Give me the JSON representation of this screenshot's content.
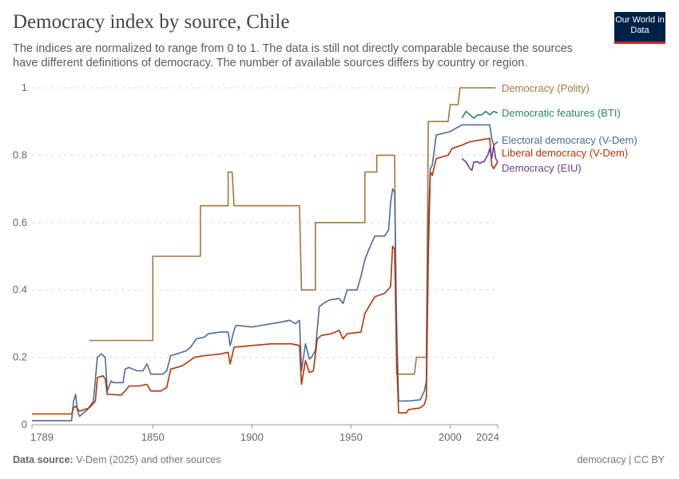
{
  "header": {
    "title": "Democracy index by source, Chile",
    "subtitle": "The indices are normalized to range from 0 to 1. The data is still not directly comparable because the sources have different definitions of democracy. The number of available sources differs by country or region.",
    "logo": "Our World in Data"
  },
  "footer": {
    "source_label": "Data source:",
    "source": "V-Dem (2025) and other sources",
    "license": "democracy | CC BY"
  },
  "chart_data": {
    "type": "line",
    "title": "Democracy index by source, Chile",
    "xlabel": "",
    "ylabel": "",
    "xlim": [
      1789,
      2024
    ],
    "ylim": [
      0,
      1
    ],
    "x_ticks": [
      "1789",
      "1850",
      "1900",
      "1950",
      "2000",
      "2024"
    ],
    "y_ticks": [
      "0",
      "0.2",
      "0.4",
      "0.6",
      "0.8",
      "1"
    ],
    "grid": "horizontal dashed",
    "legend": "right, inline labels",
    "series": [
      {
        "name": "Democracy (Polity)",
        "color": "#a2773f",
        "step": true,
        "points": [
          [
            1818,
            0.25
          ],
          [
            1850,
            0.25
          ],
          [
            1850,
            0.5
          ],
          [
            1874,
            0.5
          ],
          [
            1874,
            0.65
          ],
          [
            1888,
            0.65
          ],
          [
            1888,
            0.75
          ],
          [
            1890,
            0.75
          ],
          [
            1891,
            0.65
          ],
          [
            1924,
            0.65
          ],
          [
            1925,
            0.4
          ],
          [
            1932,
            0.4
          ],
          [
            1932,
            0.6
          ],
          [
            1957,
            0.6
          ],
          [
            1957,
            0.75
          ],
          [
            1963,
            0.75
          ],
          [
            1963,
            0.8
          ],
          [
            1972,
            0.8
          ],
          [
            1973,
            0.15
          ],
          [
            1982,
            0.15
          ],
          [
            1983,
            0.2
          ],
          [
            1988,
            0.2
          ],
          [
            1989,
            0.9
          ],
          [
            1999,
            0.9
          ],
          [
            2000,
            0.95
          ],
          [
            2004,
            0.95
          ],
          [
            2005,
            1
          ],
          [
            2023,
            1
          ]
        ]
      },
      {
        "name": "Democratic features (BTI)",
        "color": "#2c8465",
        "points": [
          [
            2006,
            0.91
          ],
          [
            2008,
            0.93
          ],
          [
            2010,
            0.92
          ],
          [
            2012,
            0.91
          ],
          [
            2014,
            0.92
          ],
          [
            2016,
            0.92
          ],
          [
            2018,
            0.93
          ],
          [
            2020,
            0.92
          ],
          [
            2022,
            0.93
          ],
          [
            2024,
            0.925
          ]
        ]
      },
      {
        "name": "Electoral democracy (V-Dem)",
        "color": "#4c6a9c",
        "points": [
          [
            1789,
            0.012
          ],
          [
            1809,
            0.012
          ],
          [
            1810,
            0.07
          ],
          [
            1811,
            0.09
          ],
          [
            1812,
            0.04
          ],
          [
            1813,
            0.025
          ],
          [
            1817,
            0.045
          ],
          [
            1820,
            0.07
          ],
          [
            1822,
            0.2
          ],
          [
            1824,
            0.21
          ],
          [
            1826,
            0.2
          ],
          [
            1827,
            0.1
          ],
          [
            1829,
            0.13
          ],
          [
            1830,
            0.125
          ],
          [
            1835,
            0.125
          ],
          [
            1836,
            0.165
          ],
          [
            1838,
            0.17
          ],
          [
            1842,
            0.16
          ],
          [
            1845,
            0.16
          ],
          [
            1847,
            0.18
          ],
          [
            1849,
            0.15
          ],
          [
            1855,
            0.15
          ],
          [
            1857,
            0.16
          ],
          [
            1859,
            0.205
          ],
          [
            1862,
            0.21
          ],
          [
            1867,
            0.22
          ],
          [
            1869,
            0.23
          ],
          [
            1872,
            0.255
          ],
          [
            1876,
            0.26
          ],
          [
            1878,
            0.27
          ],
          [
            1884,
            0.275
          ],
          [
            1888,
            0.275
          ],
          [
            1889,
            0.235
          ],
          [
            1891,
            0.28
          ],
          [
            1892,
            0.295
          ],
          [
            1900,
            0.29
          ],
          [
            1905,
            0.295
          ],
          [
            1910,
            0.3
          ],
          [
            1915,
            0.305
          ],
          [
            1919,
            0.31
          ],
          [
            1922,
            0.3
          ],
          [
            1924,
            0.31
          ],
          [
            1925,
            0.16
          ],
          [
            1927,
            0.24
          ],
          [
            1929,
            0.195
          ],
          [
            1930,
            0.2
          ],
          [
            1932,
            0.22
          ],
          [
            1934,
            0.35
          ],
          [
            1936,
            0.36
          ],
          [
            1939,
            0.37
          ],
          [
            1944,
            0.375
          ],
          [
            1946,
            0.36
          ],
          [
            1948,
            0.4
          ],
          [
            1953,
            0.4
          ],
          [
            1955,
            0.44
          ],
          [
            1957,
            0.49
          ],
          [
            1959,
            0.52
          ],
          [
            1962,
            0.56
          ],
          [
            1967,
            0.56
          ],
          [
            1969,
            0.58
          ],
          [
            1970,
            0.66
          ],
          [
            1971,
            0.7
          ],
          [
            1972,
            0.69
          ],
          [
            1973,
            0.3
          ],
          [
            1974,
            0.07
          ],
          [
            1980,
            0.071
          ],
          [
            1985,
            0.074
          ],
          [
            1987,
            0.1
          ],
          [
            1988,
            0.13
          ],
          [
            1989,
            0.6
          ],
          [
            1990,
            0.76
          ],
          [
            1991,
            0.77
          ],
          [
            1993,
            0.86
          ],
          [
            2000,
            0.87
          ],
          [
            2003,
            0.88
          ],
          [
            2006,
            0.89
          ],
          [
            2010,
            0.89
          ],
          [
            2015,
            0.89
          ],
          [
            2020,
            0.89
          ],
          [
            2021,
            0.85
          ],
          [
            2022,
            0.83
          ],
          [
            2024,
            0.84
          ]
        ]
      },
      {
        "name": "Liberal democracy (V-Dem)",
        "color": "#b13507",
        "points": [
          [
            1789,
            0.032
          ],
          [
            1809,
            0.032
          ],
          [
            1810,
            0.05
          ],
          [
            1811,
            0.055
          ],
          [
            1813,
            0.04
          ],
          [
            1818,
            0.05
          ],
          [
            1821,
            0.07
          ],
          [
            1822,
            0.14
          ],
          [
            1825,
            0.145
          ],
          [
            1826,
            0.135
          ],
          [
            1827,
            0.09
          ],
          [
            1829,
            0.09
          ],
          [
            1834,
            0.088
          ],
          [
            1836,
            0.1
          ],
          [
            1838,
            0.115
          ],
          [
            1843,
            0.115
          ],
          [
            1847,
            0.12
          ],
          [
            1849,
            0.1
          ],
          [
            1854,
            0.1
          ],
          [
            1857,
            0.11
          ],
          [
            1859,
            0.165
          ],
          [
            1862,
            0.17
          ],
          [
            1865,
            0.175
          ],
          [
            1871,
            0.2
          ],
          [
            1876,
            0.205
          ],
          [
            1884,
            0.21
          ],
          [
            1888,
            0.215
          ],
          [
            1889,
            0.18
          ],
          [
            1891,
            0.23
          ],
          [
            1900,
            0.235
          ],
          [
            1910,
            0.24
          ],
          [
            1920,
            0.24
          ],
          [
            1924,
            0.235
          ],
          [
            1925,
            0.12
          ],
          [
            1927,
            0.19
          ],
          [
            1929,
            0.155
          ],
          [
            1931,
            0.16
          ],
          [
            1933,
            0.255
          ],
          [
            1935,
            0.265
          ],
          [
            1940,
            0.27
          ],
          [
            1944,
            0.28
          ],
          [
            1946,
            0.255
          ],
          [
            1948,
            0.27
          ],
          [
            1955,
            0.275
          ],
          [
            1957,
            0.33
          ],
          [
            1959,
            0.35
          ],
          [
            1962,
            0.38
          ],
          [
            1967,
            0.39
          ],
          [
            1970,
            0.41
          ],
          [
            1971,
            0.53
          ],
          [
            1972,
            0.52
          ],
          [
            1973,
            0.2
          ],
          [
            1974,
            0.035
          ],
          [
            1978,
            0.035
          ],
          [
            1979,
            0.045
          ],
          [
            1985,
            0.05
          ],
          [
            1987,
            0.06
          ],
          [
            1988,
            0.08
          ],
          [
            1989,
            0.5
          ],
          [
            1990,
            0.75
          ],
          [
            1991,
            0.74
          ],
          [
            1993,
            0.79
          ],
          [
            1999,
            0.8
          ],
          [
            2001,
            0.82
          ],
          [
            2006,
            0.83
          ],
          [
            2010,
            0.84
          ],
          [
            2015,
            0.845
          ],
          [
            2020,
            0.85
          ],
          [
            2021,
            0.77
          ],
          [
            2022,
            0.76
          ],
          [
            2024,
            0.78
          ]
        ]
      },
      {
        "name": "Democracy (EIU)",
        "color": "#6d3e91",
        "points": [
          [
            2006,
            0.79
          ],
          [
            2008,
            0.78
          ],
          [
            2010,
            0.76
          ],
          [
            2011,
            0.755
          ],
          [
            2012,
            0.78
          ],
          [
            2014,
            0.78
          ],
          [
            2015,
            0.775
          ],
          [
            2016,
            0.78
          ],
          [
            2017,
            0.78
          ],
          [
            2019,
            0.8
          ],
          [
            2020,
            0.82
          ],
          [
            2021,
            0.79
          ],
          [
            2022,
            0.83
          ],
          [
            2023,
            0.79
          ],
          [
            2024,
            0.78
          ]
        ]
      }
    ]
  }
}
